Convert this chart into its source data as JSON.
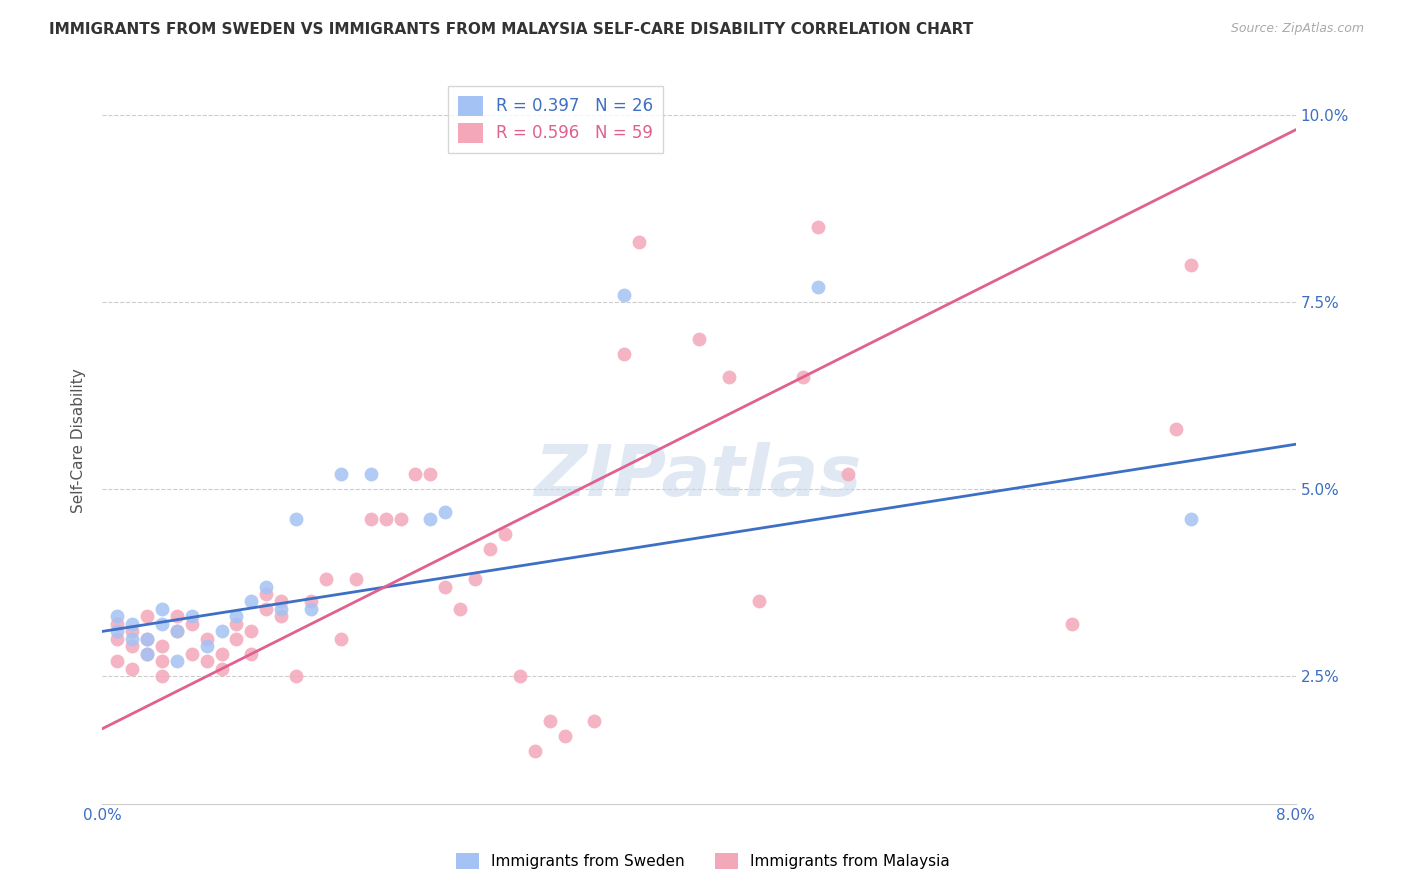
{
  "title": "IMMIGRANTS FROM SWEDEN VS IMMIGRANTS FROM MALAYSIA SELF-CARE DISABILITY CORRELATION CHART",
  "source": "Source: ZipAtlas.com",
  "ylabel": "Self-Care Disability",
  "legend_label_blue": "Immigrants from Sweden",
  "legend_label_pink": "Immigrants from Malaysia",
  "legend_r_blue": "R = 0.397",
  "legend_n_blue": "N = 26",
  "legend_r_pink": "R = 0.596",
  "legend_n_pink": "N = 59",
  "watermark": "ZIPatlas",
  "xlim": [
    0.0,
    0.08
  ],
  "ylim": [
    0.008,
    0.105
  ],
  "yticks": [
    0.025,
    0.05,
    0.075,
    0.1
  ],
  "ytick_labels": [
    "2.5%",
    "5.0%",
    "7.5%",
    "10.0%"
  ],
  "xticks": [
    0.0,
    0.01,
    0.02,
    0.03,
    0.04,
    0.05,
    0.06,
    0.07,
    0.08
  ],
  "color_blue": "#a4c2f4",
  "color_pink": "#f4a7b9",
  "line_color_blue": "#3d6fc4",
  "line_color_pink": "#e06090",
  "background_color": "#ffffff",
  "sweden_x": [
    0.001,
    0.001,
    0.002,
    0.002,
    0.003,
    0.003,
    0.004,
    0.004,
    0.005,
    0.005,
    0.006,
    0.007,
    0.008,
    0.009,
    0.01,
    0.011,
    0.012,
    0.013,
    0.014,
    0.016,
    0.018,
    0.022,
    0.023,
    0.035,
    0.048,
    0.073
  ],
  "sweden_y": [
    0.031,
    0.033,
    0.03,
    0.032,
    0.028,
    0.03,
    0.032,
    0.034,
    0.027,
    0.031,
    0.033,
    0.029,
    0.031,
    0.033,
    0.035,
    0.037,
    0.034,
    0.046,
    0.034,
    0.052,
    0.052,
    0.046,
    0.047,
    0.076,
    0.077,
    0.046
  ],
  "malaysia_x": [
    0.001,
    0.001,
    0.001,
    0.002,
    0.002,
    0.002,
    0.003,
    0.003,
    0.003,
    0.004,
    0.004,
    0.004,
    0.005,
    0.005,
    0.006,
    0.006,
    0.007,
    0.007,
    0.008,
    0.008,
    0.009,
    0.009,
    0.01,
    0.01,
    0.011,
    0.011,
    0.012,
    0.012,
    0.013,
    0.014,
    0.015,
    0.016,
    0.017,
    0.018,
    0.019,
    0.02,
    0.021,
    0.022,
    0.023,
    0.024,
    0.025,
    0.026,
    0.027,
    0.028,
    0.029,
    0.03,
    0.031,
    0.033,
    0.035,
    0.036,
    0.04,
    0.042,
    0.044,
    0.047,
    0.048,
    0.05,
    0.065,
    0.072,
    0.073
  ],
  "malaysia_y": [
    0.027,
    0.03,
    0.032,
    0.026,
    0.029,
    0.031,
    0.028,
    0.03,
    0.033,
    0.025,
    0.027,
    0.029,
    0.031,
    0.033,
    0.028,
    0.032,
    0.027,
    0.03,
    0.026,
    0.028,
    0.03,
    0.032,
    0.028,
    0.031,
    0.034,
    0.036,
    0.033,
    0.035,
    0.025,
    0.035,
    0.038,
    0.03,
    0.038,
    0.046,
    0.046,
    0.046,
    0.052,
    0.052,
    0.037,
    0.034,
    0.038,
    0.042,
    0.044,
    0.025,
    0.015,
    0.019,
    0.017,
    0.019,
    0.068,
    0.083,
    0.07,
    0.065,
    0.035,
    0.065,
    0.085,
    0.052,
    0.032,
    0.058,
    0.08
  ],
  "blue_line_x": [
    0.0,
    0.08
  ],
  "blue_line_y": [
    0.031,
    0.056
  ],
  "pink_line_x": [
    0.0,
    0.08
  ],
  "pink_line_y": [
    0.018,
    0.098
  ]
}
